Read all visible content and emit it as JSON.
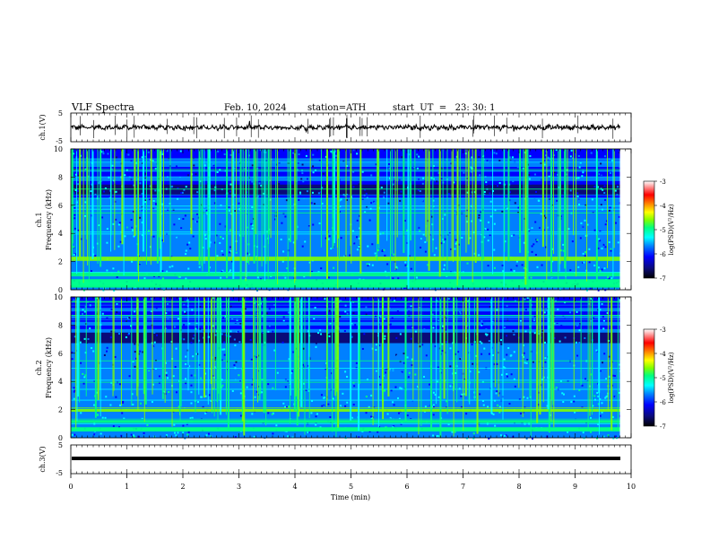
{
  "header": {
    "title": "VLF Spectra",
    "date": "Feb. 10, 2024",
    "station": "station=ATH",
    "start": "start  UT  =   23: 30: 1"
  },
  "chart_data": [
    {
      "type": "line",
      "panel": "ch1-waveform",
      "ylabel": "ch.1(V)",
      "ylim": [
        -5,
        5
      ],
      "yticks": [
        "5",
        "-5"
      ],
      "xlim": [
        0,
        10
      ],
      "baseline": 0,
      "color": "#000000"
    },
    {
      "type": "heatmap",
      "panel": "ch1-spectrogram",
      "ylabel": "ch.1\nFrequency (kHz)",
      "ylabel_line1": "ch.1",
      "ylabel_line2": "Frequency (kHz)",
      "ylim": [
        0,
        10
      ],
      "yticks": [
        "0",
        "2",
        "4",
        "6",
        "8",
        "10"
      ],
      "xlim": [
        0,
        10
      ],
      "data_end_min": 9.8,
      "bands_khz": [
        2.2,
        1.1,
        0.6,
        0.3
      ],
      "colorbar": {
        "label": "log(PSD)(V²/Hz)",
        "range": [
          -7,
          -3
        ],
        "ticks": [
          "-3",
          "-4",
          "-5",
          "-6",
          "-7"
        ]
      }
    },
    {
      "type": "heatmap",
      "panel": "ch2-spectrogram",
      "ylabel_line1": "ch.2",
      "ylabel_line2": "Frequency (kHz)",
      "ylim": [
        0,
        10
      ],
      "yticks": [
        "0",
        "2",
        "4",
        "6",
        "8",
        "10"
      ],
      "xlim": [
        0,
        10
      ],
      "data_end_min": 9.8,
      "bands_khz": [
        2.0,
        1.2,
        0.6
      ],
      "colorbar": {
        "label": "log(PSD)(V²/Hz)",
        "range": [
          -7,
          -3
        ],
        "ticks": [
          "-3",
          "-4",
          "-5",
          "-6",
          "-7"
        ]
      }
    },
    {
      "type": "line",
      "panel": "ch3-waveform",
      "ylabel": "ch.3(V)",
      "ylim": [
        -5,
        5
      ],
      "yticks": [
        "5",
        "-5"
      ],
      "xlim": [
        0,
        10
      ],
      "baseline": 1.5,
      "color": "#000000"
    }
  ],
  "xaxis": {
    "label": "Time (min)",
    "ticks": [
      "0",
      "1",
      "2",
      "3",
      "4",
      "5",
      "6",
      "7",
      "8",
      "9",
      "10"
    ],
    "range": [
      0,
      10
    ]
  },
  "colors": {
    "spectrum": [
      "#000000",
      "#0a0a78",
      "#0000ff",
      "#0080ff",
      "#00ffff",
      "#00ff80",
      "#80ff00",
      "#ffff00",
      "#ff8000",
      "#ff0000",
      "#ffffff"
    ]
  }
}
